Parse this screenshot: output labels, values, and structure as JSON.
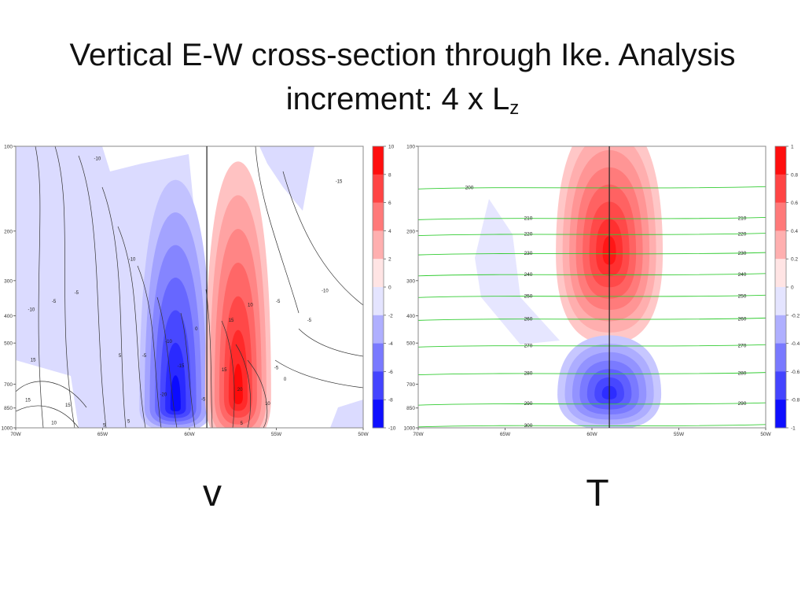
{
  "title": {
    "line1": "Vertical E-W cross-section through Ike. Analysis",
    "line2_prefix": "increment: 4 x L",
    "line2_sub": "z"
  },
  "chart_data": [
    {
      "type": "heatmap",
      "label": "v",
      "x_ticks": [
        {
          "value": -70,
          "label": "70W"
        },
        {
          "value": -65,
          "label": "65W"
        },
        {
          "value": -60,
          "label": "60W"
        },
        {
          "value": -55,
          "label": "55W"
        },
        {
          "value": -50,
          "label": "50W"
        }
      ],
      "y_ticks": [
        100,
        200,
        300,
        400,
        500,
        700,
        850,
        1000
      ],
      "y_scale": "log",
      "y_inverted": true,
      "xlim": [
        -70,
        -50
      ],
      "ylim": [
        1000,
        100
      ],
      "vertical_line_x": -59.0,
      "colorbar": {
        "min": -10,
        "max": 10,
        "ticks": [
          10,
          8,
          6,
          4,
          2,
          0,
          -2,
          -4,
          -6,
          -8,
          -10
        ]
      },
      "increment_peaks": [
        {
          "x": -60.8,
          "p": 850,
          "value": -9.5
        },
        {
          "x": -57.2,
          "p": 780,
          "value": 9.5
        }
      ],
      "contour_labels": [
        {
          "x": -65.3,
          "p": 112,
          "text": "-10"
        },
        {
          "x": -51.4,
          "p": 135,
          "text": "-15"
        },
        {
          "x": -63.3,
          "p": 255,
          "text": "-10"
        },
        {
          "x": -66.5,
          "p": 335,
          "text": "-5"
        },
        {
          "x": -67.8,
          "p": 360,
          "text": "-5"
        },
        {
          "x": -69.1,
          "p": 385,
          "text": "-10"
        },
        {
          "x": -52.2,
          "p": 330,
          "text": "-10"
        },
        {
          "x": -54.9,
          "p": 360,
          "text": "-5"
        },
        {
          "x": -53.1,
          "p": 420,
          "text": "-5"
        },
        {
          "x": -56.5,
          "p": 370,
          "text": "10"
        },
        {
          "x": -57.6,
          "p": 420,
          "text": "15"
        },
        {
          "x": -59.6,
          "p": 450,
          "text": "0"
        },
        {
          "x": -61.2,
          "p": 500,
          "text": "-10"
        },
        {
          "x": -64.0,
          "p": 560,
          "text": "5"
        },
        {
          "x": -62.6,
          "p": 560,
          "text": "-5"
        },
        {
          "x": -60.5,
          "p": 610,
          "text": "-15"
        },
        {
          "x": -58.0,
          "p": 630,
          "text": "15"
        },
        {
          "x": -55.0,
          "p": 620,
          "text": "-5"
        },
        {
          "x": -54.5,
          "p": 680,
          "text": "0"
        },
        {
          "x": -59.2,
          "p": 800,
          "text": "-5"
        },
        {
          "x": -57.1,
          "p": 740,
          "text": "20"
        },
        {
          "x": -61.5,
          "p": 770,
          "text": "-20"
        },
        {
          "x": -55.5,
          "p": 830,
          "text": "10"
        },
        {
          "x": -69.3,
          "p": 805,
          "text": "15"
        },
        {
          "x": -67.0,
          "p": 840,
          "text": "15"
        },
        {
          "x": -67.8,
          "p": 970,
          "text": "10"
        },
        {
          "x": -69.0,
          "p": 580,
          "text": "15"
        },
        {
          "x": -63.5,
          "p": 960,
          "text": "5"
        },
        {
          "x": -64.9,
          "p": 990,
          "text": "5"
        },
        {
          "x": -57.0,
          "p": 975,
          "text": "5"
        }
      ]
    },
    {
      "type": "heatmap",
      "label": "T",
      "x_ticks": [
        {
          "value": -70,
          "label": "70W"
        },
        {
          "value": -65,
          "label": "65W"
        },
        {
          "value": -60,
          "label": "60W"
        },
        {
          "value": -55,
          "label": "55W"
        },
        {
          "value": -50,
          "label": "50W"
        }
      ],
      "y_ticks": [
        100,
        200,
        300,
        400,
        500,
        700,
        850,
        1000
      ],
      "y_scale": "log",
      "y_inverted": true,
      "xlim": [
        -70,
        -50
      ],
      "ylim": [
        1000,
        100
      ],
      "vertical_line_x": -59.0,
      "colorbar": {
        "min": -1,
        "max": 1,
        "ticks": [
          1,
          0.8,
          0.6,
          0.4,
          0.2,
          0,
          -0.2,
          -0.4,
          -0.6,
          -0.8,
          -1
        ]
      },
      "increment_peaks": [
        {
          "x": -59.0,
          "p": 240,
          "value": 0.9
        },
        {
          "x": -59.0,
          "p": 760,
          "value": -0.8
        }
      ],
      "isotherms": [
        {
          "value": 200,
          "p": 140,
          "label": "200"
        },
        {
          "value": 210,
          "p": 180,
          "label": "210"
        },
        {
          "value": 220,
          "p": 205,
          "label": "220"
        },
        {
          "value": 230,
          "p": 240,
          "label": "230"
        },
        {
          "value": 240,
          "p": 285,
          "label": "240"
        },
        {
          "value": 250,
          "p": 340,
          "label": "250"
        },
        {
          "value": 260,
          "p": 410,
          "label": "260"
        },
        {
          "value": 270,
          "p": 510,
          "label": "270"
        },
        {
          "value": 280,
          "p": 640,
          "label": "280"
        },
        {
          "value": 290,
          "p": 820,
          "label": "290"
        },
        {
          "value": 300,
          "p": 980,
          "label": "300"
        }
      ]
    }
  ],
  "labels": {
    "v": "v",
    "t": "T"
  },
  "colors": {
    "positive": "#ff0000",
    "negative": "#0000ff",
    "contour": "#333333",
    "isotherm": "#33cc33"
  }
}
